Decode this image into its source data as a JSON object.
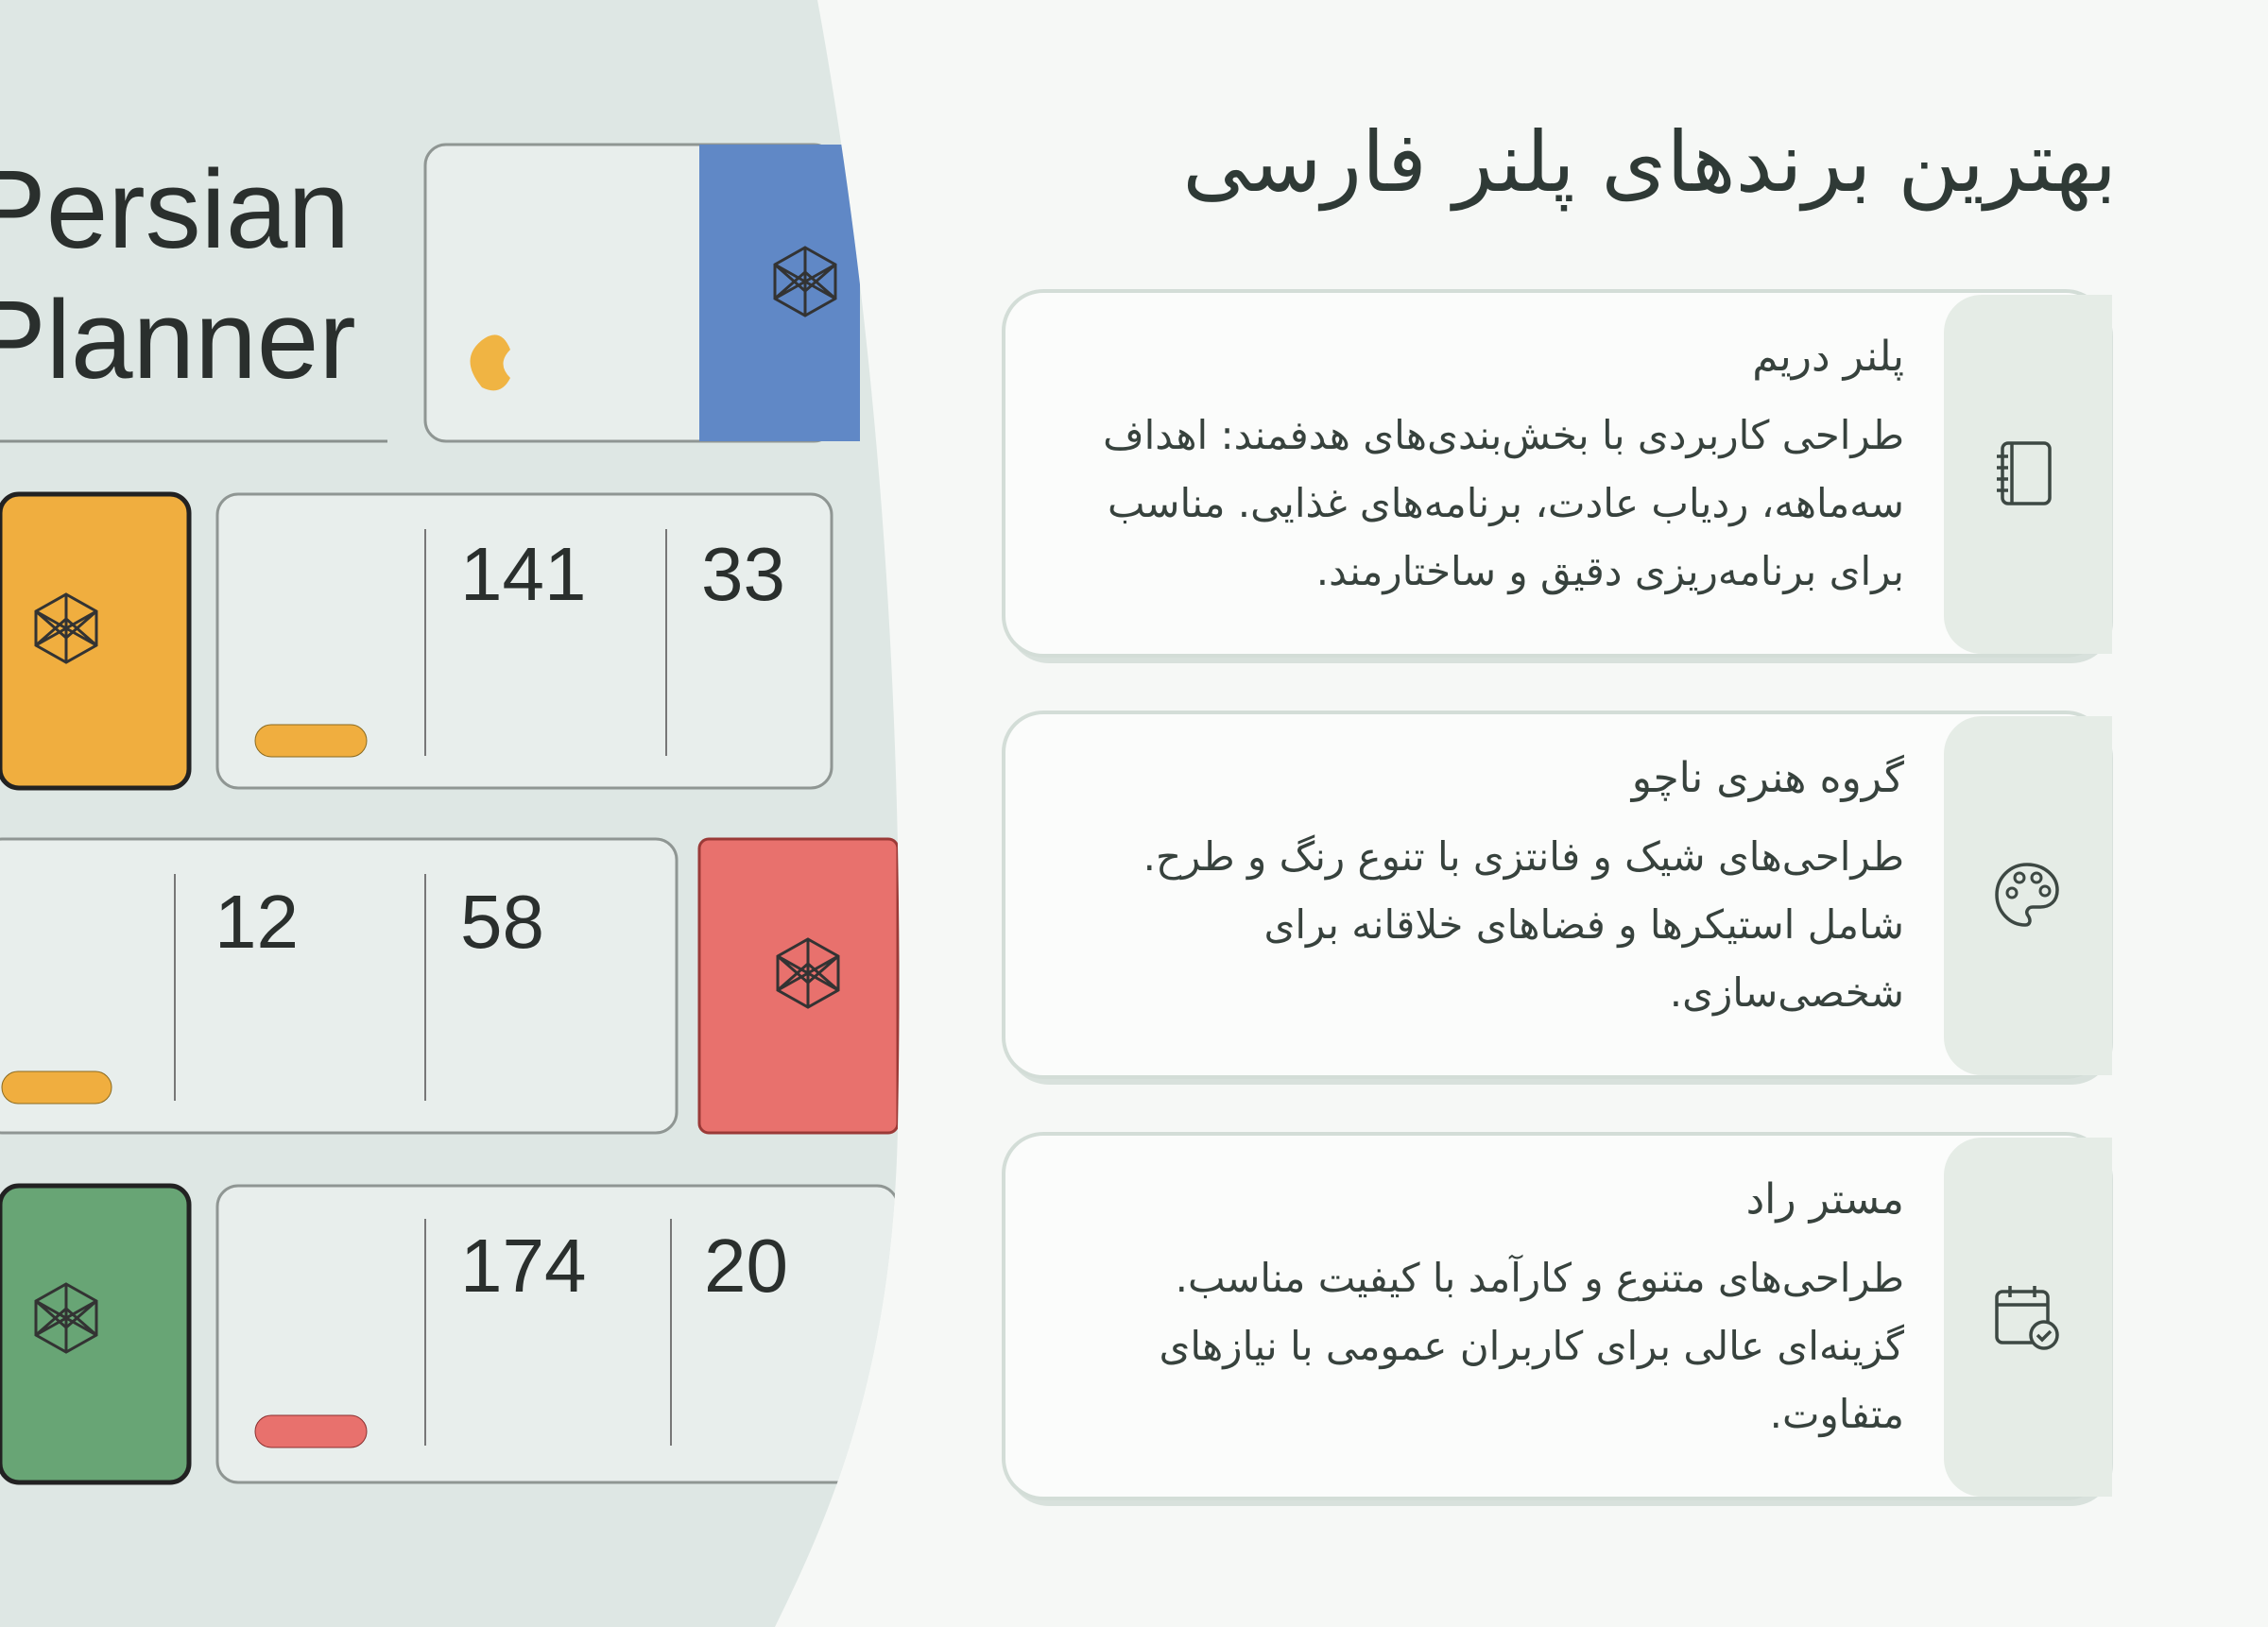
{
  "title": "بهترین برندهای پلنر فارسی",
  "image": {
    "heading": [
      "Persian",
      "Planner"
    ],
    "numbers": [
      "141",
      "33",
      "12",
      "58",
      "174",
      "20"
    ]
  },
  "cards": [
    {
      "title": "پلنر دریم",
      "text": "طراحی کاربردی با بخش‌بندی‌های هدفمند: اهداف سه‌ماهه، ردیاب عادت، برنامه‌های غذایی. مناسب برای برنامه‌ریزی دقیق و ساختارمند."
    },
    {
      "title": "گروه هنری ناچو",
      "text": "طراحی‌های شیک و فانتزی با تنوع رنگ و طرح. شامل استیکرها و فضاهای خلاقانه برای شخصی‌سازی."
    },
    {
      "title": "مستر راد",
      "text": "طراحی‌های متنوع و کارآمد با کیفیت مناسب. گزینه‌ای عالی برای کاربران عمومی با نیازهای متفاوت."
    }
  ]
}
